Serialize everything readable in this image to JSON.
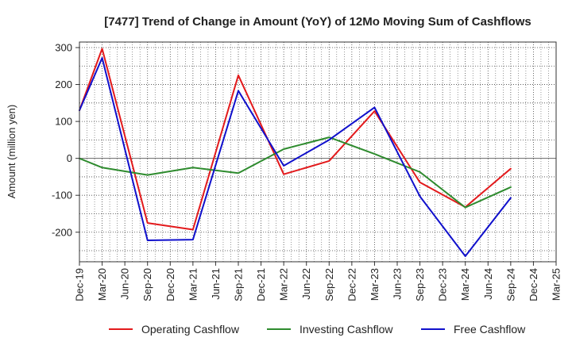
{
  "chart_data": {
    "type": "line",
    "title": "[7477]  Trend of Change in Amount (YoY) of 12Mo Moving Sum of Cashflows",
    "xlabel": "",
    "ylabel": "Amount (million yen)",
    "ylim": [
      -280,
      315
    ],
    "yticks": [
      300,
      200,
      100,
      0,
      -100,
      -200
    ],
    "categories": [
      "Dec-19",
      "Mar-20",
      "Jun-20",
      "Sep-20",
      "Dec-20",
      "Mar-21",
      "Jun-21",
      "Sep-21",
      "Dec-21",
      "Mar-22",
      "Jun-22",
      "Sep-22",
      "Dec-22",
      "Mar-23",
      "Jun-23",
      "Sep-23",
      "Dec-23",
      "Mar-24",
      "Jun-24",
      "Sep-24",
      "Dec-24",
      "Mar-25"
    ],
    "grid": true,
    "legend_position": "bottom",
    "series": [
      {
        "name": "Operating Cashflow",
        "color": "#e31a1c",
        "points": [
          [
            "Dec-19",
            130
          ],
          [
            "Mar-20",
            297
          ],
          [
            "Sep-20",
            -175
          ],
          [
            "Mar-21",
            -193
          ],
          [
            "Sep-21",
            225
          ],
          [
            "Mar-22",
            -43
          ],
          [
            "Sep-22",
            -7
          ],
          [
            "Mar-23",
            128
          ],
          [
            "Sep-23",
            -65
          ],
          [
            "Mar-24",
            -132
          ],
          [
            "Sep-24",
            -28
          ]
        ]
      },
      {
        "name": "Investing Cashflow",
        "color": "#2e8b2e",
        "points": [
          [
            "Dec-19",
            0
          ],
          [
            "Mar-20",
            -25
          ],
          [
            "Sep-20",
            -45
          ],
          [
            "Mar-21",
            -25
          ],
          [
            "Sep-21",
            -40
          ],
          [
            "Mar-22",
            25
          ],
          [
            "Sep-22",
            57
          ],
          [
            "Mar-23",
            12
          ],
          [
            "Sep-23",
            -37
          ],
          [
            "Mar-24",
            -133
          ],
          [
            "Sep-24",
            -78
          ]
        ]
      },
      {
        "name": "Free Cashflow",
        "color": "#1010cc",
        "points": [
          [
            "Dec-19",
            130
          ],
          [
            "Mar-20",
            272
          ],
          [
            "Sep-20",
            -222
          ],
          [
            "Mar-21",
            -220
          ],
          [
            "Sep-21",
            183
          ],
          [
            "Mar-22",
            -20
          ],
          [
            "Sep-22",
            50
          ],
          [
            "Mar-23",
            138
          ],
          [
            "Sep-23",
            -103
          ],
          [
            "Mar-24",
            -265
          ],
          [
            "Sep-24",
            -107
          ]
        ]
      }
    ]
  }
}
